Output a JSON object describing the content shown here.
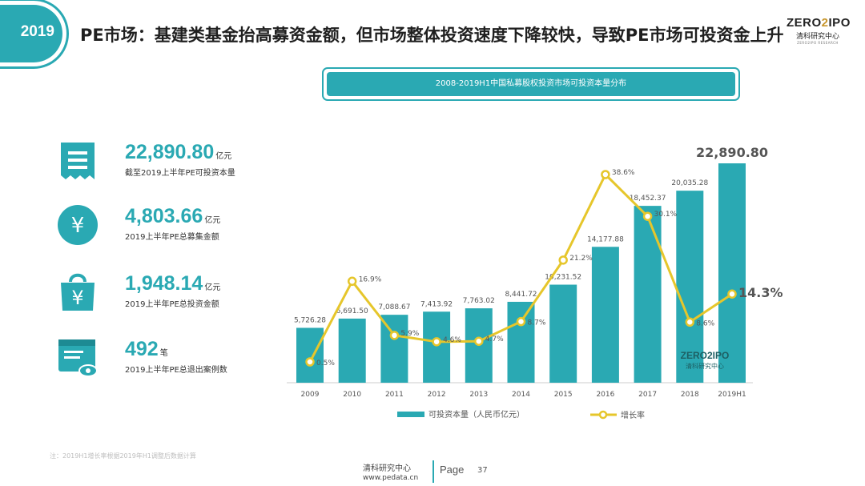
{
  "header": {
    "year_badge": "2019",
    "title": "PE市场：基建类基金抬高募资金额，但市场整体投资速度下降较快，导致PE市场可投资金上升"
  },
  "logo": {
    "main_left": "ZERO",
    "main_mid": "2",
    "main_right": "IPO",
    "sub": "清科研究中心",
    "tiny": "ZERO2IPO RESEARCH"
  },
  "chart_banner": "2008-2019H1中国私募股权投资市场可投资本量分布",
  "stats": [
    {
      "icon": "receipt-icon",
      "value": "22,890.80",
      "unit": "亿元",
      "desc": "截至2019上半年PE可投资本量"
    },
    {
      "icon": "yen-coin-icon",
      "value": "4,803.66",
      "unit": "亿元",
      "desc": "2019上半年PE总募集金额"
    },
    {
      "icon": "yen-bag-icon",
      "value": "1,948.14",
      "unit": "亿元",
      "desc": "2019上半年PE总投资金额"
    },
    {
      "icon": "eye-card-icon",
      "value": "492",
      "unit": "笔",
      "desc": "2019上半年PE总退出案例数"
    }
  ],
  "chart_data": {
    "type": "bar",
    "categories": [
      "2009",
      "2010",
      "2011",
      "2012",
      "2013",
      "2014",
      "2015",
      "2016",
      "2017",
      "2018",
      "2019H1"
    ],
    "series": [
      {
        "name": "可投资本量（人民币亿元）",
        "type": "bar",
        "values": [
          5726.28,
          6691.5,
          7088.67,
          7413.92,
          7763.02,
          8441.72,
          10231.52,
          14177.88,
          18452.37,
          20035.28,
          22890.8
        ],
        "labels": [
          "5,726.28",
          "6,691.50",
          "7,088.67",
          "7,413.92",
          "7,763.02",
          "8,441.72",
          "10,231.52",
          "14,177.88",
          "18,452.37",
          "20,035.28",
          "22,890.80"
        ]
      },
      {
        "name": "增长率",
        "type": "line",
        "values": [
          0.5,
          16.9,
          5.9,
          4.6,
          4.7,
          8.7,
          21.2,
          38.6,
          30.1,
          8.6,
          14.3
        ],
        "labels": [
          "0.5%",
          "16.9%",
          "5.9%",
          "4.6%",
          "4.7%",
          "8.7%",
          "21.2%",
          "38.6%",
          "30.1%",
          "8.6%",
          "14.3%"
        ]
      }
    ],
    "legend_position": "bottom",
    "colors": {
      "bar": "#2aa9b3",
      "line": "#e6c62b"
    }
  },
  "watermark": {
    "main_left": "ZERO",
    "main_mid": "2",
    "main_right": "IPO",
    "sub": "清科研究中心"
  },
  "note": "注：2019H1增长率根据2019年H1调整后数据计算",
  "footer": {
    "org": "清科研究中心",
    "url": "www.pedata.cn",
    "page_label": "Page",
    "page_num": "37"
  }
}
